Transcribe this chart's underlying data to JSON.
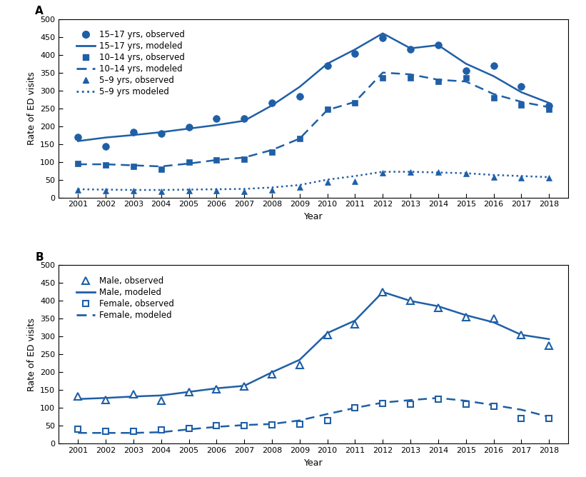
{
  "years": [
    2001,
    2002,
    2003,
    2004,
    2005,
    2006,
    2007,
    2008,
    2009,
    2010,
    2011,
    2012,
    2013,
    2014,
    2015,
    2016,
    2017,
    2018
  ],
  "panel_a": {
    "obs_15_17": [
      170,
      143,
      183,
      180,
      197,
      222,
      222,
      265,
      283,
      370,
      403,
      447,
      415,
      428,
      355,
      370,
      312,
      258
    ],
    "model_15_17": [
      158,
      168,
      175,
      183,
      193,
      203,
      215,
      258,
      310,
      375,
      415,
      460,
      418,
      427,
      375,
      340,
      295,
      265
    ],
    "obs_10_14": [
      95,
      92,
      87,
      79,
      100,
      105,
      108,
      128,
      165,
      247,
      265,
      335,
      335,
      325,
      335,
      280,
      260,
      248
    ],
    "model_10_14": [
      93,
      93,
      90,
      87,
      95,
      105,
      112,
      133,
      165,
      245,
      268,
      350,
      345,
      330,
      325,
      290,
      268,
      253
    ],
    "obs_5_9": [
      22,
      20,
      20,
      17,
      20,
      20,
      17,
      22,
      30,
      43,
      45,
      70,
      72,
      72,
      68,
      57,
      55,
      55
    ],
    "model_5_9": [
      23,
      22,
      21,
      21,
      22,
      23,
      24,
      28,
      35,
      50,
      60,
      72,
      72,
      70,
      68,
      63,
      60,
      57
    ]
  },
  "panel_b": {
    "obs_male": [
      133,
      123,
      138,
      120,
      145,
      153,
      160,
      195,
      220,
      305,
      335,
      425,
      400,
      380,
      355,
      350,
      305,
      275
    ],
    "model_male": [
      125,
      128,
      132,
      135,
      145,
      155,
      162,
      200,
      235,
      310,
      345,
      425,
      400,
      385,
      360,
      340,
      305,
      293
    ],
    "obs_female": [
      40,
      35,
      35,
      38,
      43,
      50,
      50,
      52,
      55,
      65,
      100,
      113,
      110,
      125,
      110,
      105,
      70,
      70
    ],
    "model_female": [
      30,
      30,
      30,
      32,
      40,
      47,
      52,
      55,
      65,
      83,
      100,
      115,
      122,
      128,
      120,
      108,
      95,
      75
    ]
  },
  "color": "#1f5fa6",
  "ylim": [
    0,
    500
  ],
  "yticks": [
    0,
    50,
    100,
    150,
    200,
    250,
    300,
    350,
    400,
    450,
    500
  ],
  "xlabel": "Year",
  "ylabel": "Rate of ED visits",
  "label_A": "A",
  "label_B": "B",
  "legend_a": [
    {
      "marker": "o",
      "linestyle": "none",
      "label": "15–17 yrs, observed",
      "filled": true
    },
    {
      "marker": "none",
      "linestyle": "-",
      "label": "15–17 yrs, modeled",
      "filled": true
    },
    {
      "marker": "s",
      "linestyle": "none",
      "label": "10–14 yrs, observed",
      "filled": true
    },
    {
      "marker": "none",
      "linestyle": "--",
      "label": "10–14 yrs, modeled",
      "filled": true
    },
    {
      "marker": "^",
      "linestyle": "none",
      "label": "5–9 yrs, observed",
      "filled": true
    },
    {
      "marker": "none",
      "linestyle": ":",
      "label": "5–9 yrs modeled",
      "filled": true
    }
  ],
  "legend_b": [
    {
      "marker": "^",
      "linestyle": "none",
      "label": "Male, observed",
      "filled": false
    },
    {
      "marker": "none",
      "linestyle": "-",
      "label": "Male, modeled",
      "filled": true
    },
    {
      "marker": "s",
      "linestyle": "none",
      "label": "Female, observed",
      "filled": false
    },
    {
      "marker": "none",
      "linestyle": "--",
      "label": "Female, modeled",
      "filled": true
    }
  ]
}
